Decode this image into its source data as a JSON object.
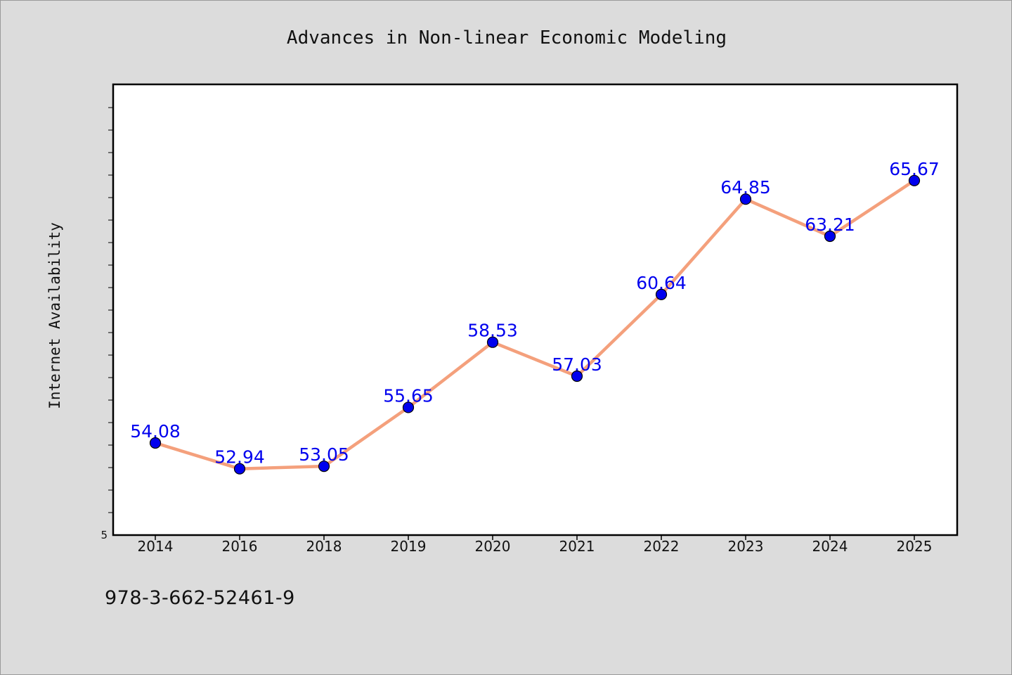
{
  "chart_data": {
    "type": "line",
    "title": "Advances in Non-linear Economic Modeling",
    "xlabel": "",
    "ylabel": "Internet Availability",
    "categories": [
      "2014",
      "2016",
      "2018",
      "2019",
      "2020",
      "2021",
      "2022",
      "2023",
      "2024",
      "2025"
    ],
    "series": [
      {
        "values": [
          54.08,
          52.94,
          53.05,
          55.65,
          58.53,
          57.03,
          60.64,
          64.85,
          63.21,
          65.67
        ],
        "data_labels": [
          "54.08",
          "52.94",
          "53.05",
          "55.65",
          "58.53",
          "57.03",
          "60.64",
          "64.85",
          "63.21",
          "65.67"
        ],
        "line_color": "#f4a07c",
        "marker_color": "#0000ee"
      }
    ],
    "y_tick_labels": [
      "5"
    ],
    "grid": false,
    "legend": "none"
  },
  "footer": {
    "isbn": "978-3-662-52461-9"
  }
}
